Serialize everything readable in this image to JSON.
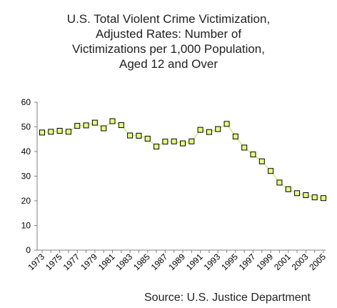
{
  "title_lines": [
    "U.S. Total Violent Crime Victimization,",
    "Adjusted Rates: Number of",
    "Victimizations per 1,000 Population,",
    "Aged 12 and Over"
  ],
  "source": "Source: U.S. Justice Department",
  "chart_data": {
    "type": "line",
    "title": "U.S. Total Violent Crime Victimization, Adjusted Rates: Number of Victimizations per 1,000 Population, Aged 12 and Over",
    "xlabel": "",
    "ylabel": "",
    "x": [
      1973,
      1974,
      1975,
      1976,
      1977,
      1978,
      1979,
      1980,
      1981,
      1982,
      1983,
      1984,
      1985,
      1986,
      1987,
      1988,
      1989,
      1990,
      1991,
      1992,
      1993,
      1994,
      1995,
      1996,
      1997,
      1998,
      1999,
      2000,
      2001,
      2002,
      2003,
      2004,
      2005
    ],
    "values": [
      47.7,
      48.0,
      48.4,
      48.0,
      50.4,
      50.6,
      51.7,
      49.4,
      52.3,
      50.7,
      46.5,
      46.4,
      45.2,
      42.0,
      44.0,
      44.1,
      43.3,
      44.1,
      48.8,
      47.9,
      49.1,
      51.2,
      46.1,
      41.6,
      38.8,
      36.0,
      32.1,
      27.4,
      24.7,
      23.1,
      22.3,
      21.4,
      21.1
    ],
    "x_tick_labels": [
      "1973",
      "1975",
      "1977",
      "1979",
      "1981",
      "1983",
      "1985",
      "1987",
      "1989",
      "1991",
      "1993",
      "1995",
      "1997",
      "1999",
      "2001",
      "2003",
      "2005"
    ],
    "y_ticks": [
      0,
      10,
      20,
      30,
      40,
      50,
      60
    ],
    "ylim": [
      0,
      60
    ],
    "grid": false,
    "colors": {
      "line": "#c8f07c",
      "marker_fill": "#e6ff82",
      "marker_edge": "#000000"
    }
  }
}
